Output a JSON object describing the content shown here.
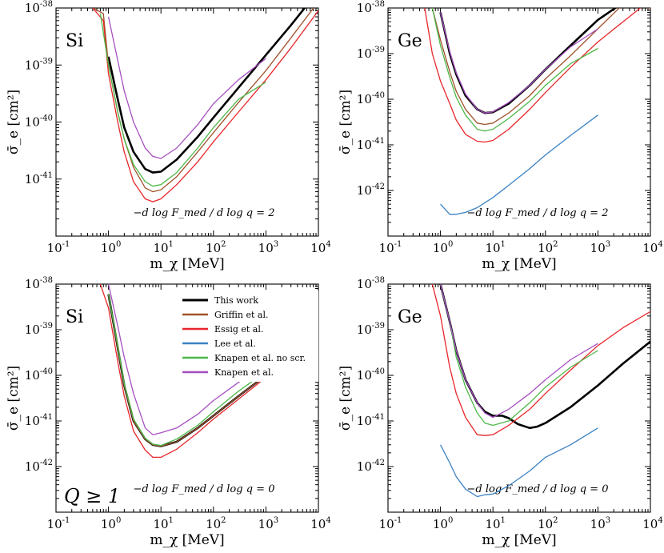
{
  "legend": [
    {
      "name": "This work",
      "color": "#000000"
    },
    {
      "name": "Griffin et al.",
      "color": "#a0522d"
    },
    {
      "name": "Essig et al.",
      "color": "#e8262a"
    },
    {
      "name": "Lee et al.",
      "color": "#3a82c3"
    },
    {
      "name": "Knapen et al. no scr.",
      "color": "#4db848"
    },
    {
      "name": "Knapen et al.",
      "color": "#a64fc0"
    }
  ],
  "chart_data": [
    {
      "type": "line",
      "panel": "top-left",
      "title": "Si",
      "xlabel": "m_χ [MeV]",
      "ylabel": "σ̄_e [cm²]",
      "xscale": "log",
      "yscale": "log",
      "xlim": [
        0.1,
        10000
      ],
      "ylim": [
        1e-42,
        1e-38
      ],
      "x_ticks": [
        "10^-1",
        "10^0",
        "10^1",
        "10^2",
        "10^3",
        "10^4"
      ],
      "y_ticks": [
        "10^-41",
        "10^-40",
        "10^-39",
        "10^-38"
      ],
      "annotation": {
        "lhs": "−d log F_med / d log q",
        "value": "2"
      },
      "series": [
        {
          "name": "This work",
          "x": [
            1,
            1.5,
            2,
            3,
            5,
            7,
            10,
            20,
            50,
            100,
            300,
            1000,
            3000,
            10000
          ],
          "y": [
            1.4e-39,
            2.5e-40,
            8e-41,
            3e-41,
            1.5e-41,
            1.3e-41,
            1.35e-41,
            2.2e-41,
            5.5e-41,
            1.2e-40,
            4e-40,
            1.5e-39,
            5e-39,
            2e-38
          ]
        },
        {
          "name": "Griffin et al.",
          "x": [
            0.5,
            0.8,
            1,
            1.5,
            2,
            3,
            5,
            7,
            10,
            20,
            50,
            100,
            300,
            1000,
            3000,
            10000
          ],
          "y": [
            1e-38,
            8e-39,
            1e-39,
            1.5e-40,
            5e-41,
            1.6e-41,
            7e-42,
            6e-42,
            6.5e-42,
            1.1e-41,
            3e-41,
            6.5e-41,
            2.2e-40,
            8e-40,
            3e-39,
            1.3e-38
          ]
        },
        {
          "name": "Essig et al.",
          "x": [
            0.5,
            0.8,
            1,
            1.5,
            2,
            3,
            5,
            7,
            10,
            20,
            50,
            100,
            300,
            1000,
            3000,
            10000
          ],
          "y": [
            1e-38,
            6e-39,
            7e-40,
            1e-40,
            3e-41,
            9e-42,
            4.5e-42,
            4e-42,
            4.5e-42,
            8e-42,
            2e-41,
            4.5e-41,
            1.5e-40,
            5.5e-40,
            2e-39,
            9e-39
          ]
        },
        {
          "name": "Knapen et al. no scr.",
          "x": [
            0.7,
            1,
            1.5,
            2,
            3,
            5,
            7,
            10,
            20,
            50,
            100,
            300,
            1000
          ],
          "y": [
            8e-39,
            1e-39,
            1.5e-40,
            5e-41,
            1.8e-41,
            9e-42,
            7.5e-42,
            8e-42,
            1.3e-41,
            3.5e-41,
            8e-41,
            2.5e-40,
            5e-40
          ]
        },
        {
          "name": "Knapen et al.",
          "x": [
            1,
            1.5,
            2,
            3,
            5,
            7,
            10,
            20,
            50,
            100,
            300,
            1000
          ],
          "y": [
            7e-39,
            1.2e-39,
            3.5e-40,
            1e-40,
            3.5e-41,
            2.5e-41,
            2.3e-41,
            3.5e-41,
            9e-41,
            2.1e-40,
            5.5e-40,
            1.3e-39
          ]
        }
      ]
    },
    {
      "type": "line",
      "panel": "top-right",
      "title": "Ge",
      "xlabel": "m_χ [MeV]",
      "ylabel": "σ̄_e [cm²]",
      "xscale": "log",
      "yscale": "log",
      "xlim": [
        0.1,
        10000
      ],
      "ylim": [
        1e-43,
        1e-38
      ],
      "x_ticks": [
        "10^-1",
        "10^0",
        "10^1",
        "10^2",
        "10^3",
        "10^4"
      ],
      "y_ticks": [
        "10^-42",
        "10^-41",
        "10^-40",
        "10^-39",
        "10^-38"
      ],
      "annotation": {
        "lhs": "−d log F_med / d log q",
        "value": "2"
      },
      "series": [
        {
          "name": "This work",
          "x": [
            1,
            1.5,
            2,
            3,
            5,
            7,
            10,
            20,
            50,
            100,
            300,
            1000,
            3000
          ],
          "y": [
            8e-39,
            1e-39,
            3.5e-40,
            1.2e-40,
            6e-41,
            5e-41,
            5.2e-41,
            8e-41,
            2e-40,
            4.5e-40,
            1.5e-39,
            5.5e-39,
            1.3e-38
          ]
        },
        {
          "name": "Griffin et al.",
          "x": [
            0.7,
            1,
            1.5,
            2,
            3,
            5,
            7,
            10,
            20,
            50,
            100,
            300,
            1000,
            3000,
            10000
          ],
          "y": [
            1e-38,
            2e-39,
            4e-40,
            1.5e-40,
            6e-41,
            3e-41,
            2.8e-41,
            3e-41,
            5e-41,
            1.2e-40,
            2.8e-40,
            9e-40,
            3.5e-39,
            1.2e-38,
            1e-38
          ]
        },
        {
          "name": "Essig et al.",
          "x": [
            0.5,
            0.7,
            1,
            1.5,
            2,
            3,
            5,
            7,
            10,
            20,
            50,
            100,
            300,
            1000,
            3000,
            10000
          ],
          "y": [
            1e-38,
            1e-39,
            2.5e-40,
            8e-41,
            3.5e-41,
            1.7e-41,
            1.2e-41,
            1.15e-41,
            1.25e-41,
            2.2e-41,
            6e-41,
            1.4e-40,
            5e-40,
            1.8e-39,
            5e-39,
            1.5e-38
          ]
        },
        {
          "name": "Lee et al.",
          "x": [
            1,
            1.5,
            2,
            3,
            5,
            10,
            20,
            50,
            100,
            300,
            1000
          ],
          "y": [
            5e-43,
            3e-43,
            3e-43,
            3.3e-43,
            4.2e-43,
            7e-43,
            1.3e-42,
            3e-42,
            6e-42,
            1.6e-41,
            4.5e-41
          ]
        },
        {
          "name": "Knapen et al. no scr.",
          "x": [
            0.7,
            1,
            1.5,
            2,
            3,
            5,
            7,
            10,
            20,
            50,
            100,
            300,
            1000
          ],
          "y": [
            1e-38,
            1.5e-39,
            3e-40,
            1.1e-40,
            4.5e-41,
            2.2e-41,
            2e-41,
            2.2e-41,
            3.8e-41,
            9e-41,
            2e-40,
            6e-40,
            1.3e-39
          ]
        },
        {
          "name": "Knapen et al.",
          "x": [
            1,
            1.5,
            2,
            3,
            5,
            7,
            10,
            20,
            50,
            100,
            300,
            1000
          ],
          "y": [
            8e-39,
            1.1e-39,
            3.8e-40,
            1.3e-40,
            6e-41,
            5e-41,
            5.3e-41,
            8.5e-41,
            2e-40,
            4.5e-40,
            1.4e-39,
            3.5e-39
          ]
        }
      ]
    },
    {
      "type": "line",
      "panel": "bottom-left",
      "title": "Si",
      "subtitle": "Q ≥ 1",
      "xlabel": "m_χ [MeV]",
      "ylabel": "σ̄_e [cm²]",
      "xscale": "log",
      "yscale": "log",
      "xlim": [
        0.1,
        10000
      ],
      "ylim": [
        1e-43,
        1e-38
      ],
      "x_ticks": [
        "10^-1",
        "10^0",
        "10^1",
        "10^2",
        "10^3",
        "10^4"
      ],
      "y_ticks": [
        "10^-42",
        "10^-41",
        "10^-40",
        "10^-39",
        "10^-38"
      ],
      "annotation": {
        "lhs": "−d log F_med / d log q",
        "value": "0"
      },
      "legend_position": "top-center",
      "series": [
        {
          "name": "This work",
          "x": [
            1,
            1.5,
            2,
            3,
            5,
            7,
            10,
            20,
            50,
            100,
            300,
            1000,
            3000,
            10000
          ],
          "y": [
            6e-39,
            4e-40,
            6e-41,
            1e-41,
            4e-42,
            3e-42,
            2.8e-42,
            3.5e-42,
            7e-42,
            1.3e-41,
            3.5e-41,
            1e-40,
            2.5e-40,
            6e-40
          ]
        },
        {
          "name": "Griffin et al.",
          "x": [
            1,
            1.5,
            2,
            3,
            5,
            7,
            10,
            20,
            50,
            100,
            300,
            1000,
            3000,
            10000
          ],
          "y": [
            6e-39,
            4e-40,
            6e-41,
            1e-41,
            4e-42,
            3e-42,
            2.8e-42,
            3.5e-42,
            7e-42,
            1.3e-41,
            3.5e-41,
            1e-40,
            2.5e-40,
            6e-40
          ]
        },
        {
          "name": "Essig et al.",
          "x": [
            0.7,
            1,
            1.5,
            2,
            3,
            5,
            7,
            10,
            20,
            50,
            100,
            300,
            1000,
            3000,
            10000
          ],
          "y": [
            1e-38,
            3e-39,
            2e-40,
            3.5e-41,
            6e-42,
            2.3e-42,
            1.6e-42,
            1.6e-42,
            2.4e-42,
            5.5e-42,
            1.1e-41,
            3e-41,
            9e-41,
            2.5e-40,
            6e-40
          ]
        },
        {
          "name": "Knapen et al. no scr.",
          "x": [
            1,
            1.5,
            2,
            3,
            5,
            7,
            10,
            20,
            50,
            100,
            300,
            1000
          ],
          "y": [
            6e-39,
            4.5e-40,
            6.5e-41,
            1.1e-41,
            4.2e-42,
            3.1e-42,
            2.9e-42,
            4e-42,
            8e-42,
            1.6e-41,
            4.5e-41,
            1.2e-40
          ]
        },
        {
          "name": "Knapen et al.",
          "x": [
            1,
            1.5,
            2,
            3,
            5,
            7,
            10,
            20,
            50,
            100,
            300,
            1000
          ],
          "y": [
            1e-38,
            1.2e-39,
            2.5e-40,
            4e-41,
            7e-42,
            5e-42,
            5.5e-42,
            7e-42,
            1.4e-41,
            2.8e-41,
            7e-41,
            1.8e-40
          ]
        }
      ]
    },
    {
      "type": "line",
      "panel": "bottom-right",
      "title": "Ge",
      "xlabel": "m_χ [MeV]",
      "ylabel": "σ̄_e [cm²]",
      "xscale": "log",
      "yscale": "log",
      "xlim": [
        0.1,
        10000
      ],
      "ylim": [
        1e-43,
        1e-38
      ],
      "x_ticks": [
        "10^-1",
        "10^0",
        "10^1",
        "10^2",
        "10^3",
        "10^4"
      ],
      "y_ticks": [
        "10^-42",
        "10^-41",
        "10^-40",
        "10^-39",
        "10^-38"
      ],
      "annotation": {
        "lhs": "−d log F_med / d log q",
        "value": "0"
      },
      "series": [
        {
          "name": "This work",
          "x": [
            1,
            1.5,
            2,
            3,
            5,
            7,
            10,
            15,
            20,
            30,
            50,
            70,
            100,
            300,
            1000,
            3000,
            10000
          ],
          "y": [
            1e-38,
            1.5e-39,
            3.5e-40,
            8e-41,
            2.5e-41,
            1.6e-41,
            1.3e-41,
            1.3e-41,
            1.15e-41,
            8.5e-42,
            7e-42,
            7.5e-42,
            9e-42,
            2e-41,
            6e-41,
            1.8e-40,
            5.5e-40
          ]
        },
        {
          "name": "Essig et al.",
          "x": [
            0.7,
            1,
            1.5,
            2,
            3,
            5,
            7,
            10,
            20,
            50,
            100,
            300,
            1000,
            3000,
            10000
          ],
          "y": [
            1e-38,
            2e-39,
            1.5e-40,
            4e-41,
            1.2e-41,
            5e-42,
            4.8e-42,
            5e-42,
            8e-42,
            1.8e-41,
            4e-41,
            1.3e-40,
            4.5e-40,
            1.1e-39,
            2.5e-39
          ]
        },
        {
          "name": "Lee et al.",
          "x": [
            1,
            1.5,
            2,
            3,
            5,
            7,
            10,
            20,
            50,
            100,
            300,
            1000
          ],
          "y": [
            3e-42,
            1.2e-42,
            6e-43,
            3.2e-43,
            2.2e-43,
            2.4e-43,
            2.5e-43,
            3.8e-43,
            8e-43,
            1.6e-42,
            3e-42,
            7e-42
          ]
        },
        {
          "name": "Knapen et al. no scr.",
          "x": [
            1,
            1.5,
            2,
            3,
            5,
            7,
            10,
            20,
            50,
            100,
            300,
            1000
          ],
          "y": [
            1e-38,
            1.5e-39,
            2.5e-40,
            5.5e-41,
            1.5e-41,
            9e-42,
            8e-42,
            1e-41,
            2.5e-41,
            5.5e-41,
            1.5e-40,
            3.5e-40
          ]
        },
        {
          "name": "Knapen et al.",
          "x": [
            1,
            1.5,
            2,
            3,
            5,
            7,
            10,
            20,
            50,
            100,
            300,
            1000
          ],
          "y": [
            1e-38,
            1.5e-39,
            3.5e-40,
            8e-41,
            2.5e-41,
            1.5e-41,
            1.2e-41,
            1.8e-41,
            4e-41,
            8e-41,
            2.2e-40,
            5e-40
          ]
        }
      ]
    }
  ]
}
